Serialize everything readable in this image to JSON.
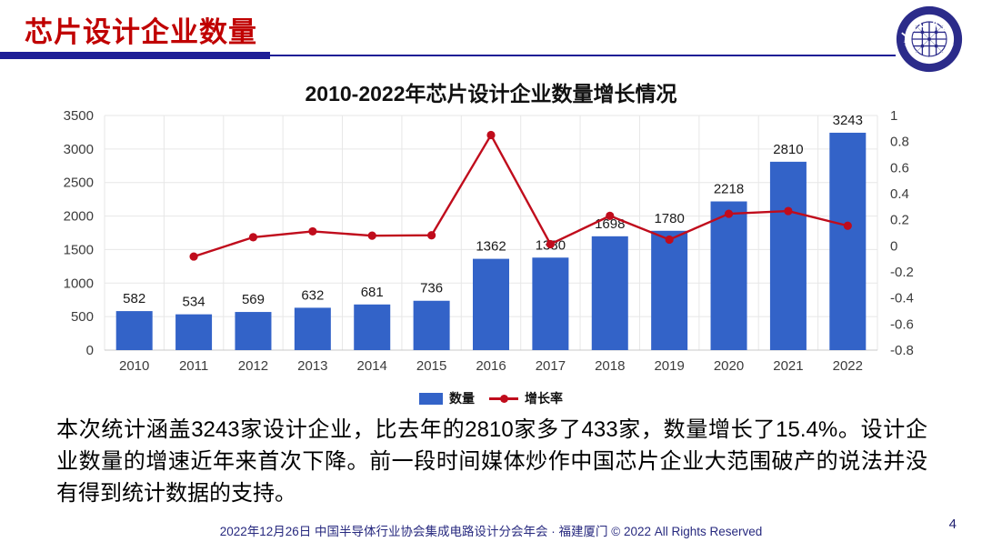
{
  "header": {
    "title": "芯片设计企业数量",
    "accent_color": "#c00000",
    "underline_color": "#1d1d96"
  },
  "logo": {
    "text": "ICCAD",
    "subtext": "中国半导体行业协会集成电路设计分会"
  },
  "chart_data": {
    "type": "bar+line combo",
    "title": "2010-2022年芯片设计企业数量增长情况",
    "categories": [
      "2010",
      "2011",
      "2012",
      "2013",
      "2014",
      "2015",
      "2016",
      "2017",
      "2018",
      "2019",
      "2020",
      "2021",
      "2022"
    ],
    "series": [
      {
        "name": "数量",
        "type": "bar",
        "axis": "left",
        "color": "#3363c8",
        "values": [
          582,
          534,
          569,
          632,
          681,
          736,
          1362,
          1380,
          1698,
          1780,
          2218,
          2810,
          3243
        ]
      },
      {
        "name": "增长率",
        "type": "line",
        "axis": "right",
        "color": "#c00c1c",
        "values": [
          null,
          -0.082,
          0.066,
          0.111,
          0.078,
          0.081,
          0.85,
          0.013,
          0.23,
          0.048,
          0.246,
          0.267,
          0.154
        ]
      }
    ],
    "left_axis": {
      "min": 0,
      "max": 3500,
      "step": 500,
      "ticks": [
        "3500",
        "3000",
        "2500",
        "2000",
        "1500",
        "1000",
        "500",
        "0"
      ]
    },
    "right_axis": {
      "min": -0.8,
      "max": 1,
      "step": 0.2,
      "ticks": [
        "1",
        "0.8",
        "0.6",
        "0.4",
        "0.2",
        "0",
        "-0.2",
        "-0.4",
        "-0.6",
        "-0.8"
      ]
    },
    "grid": true,
    "legend_position": "bottom",
    "data_labels": "bars only"
  },
  "body": {
    "paragraph": "本次统计涵盖3243家设计企业，比去年的2810家多了433家，数量增长了15.4%。设计企业数量的增速近年来首次下降。前一段时间媒体炒作中国芯片企业大范围破产的说法并没有得到统计数据的支持。"
  },
  "footer": {
    "text": "2022年12月26日 中国半导体行业协会集成电路设计分会年会 · 福建厦门 © 2022 All Rights Reserved",
    "page_number": "4"
  }
}
